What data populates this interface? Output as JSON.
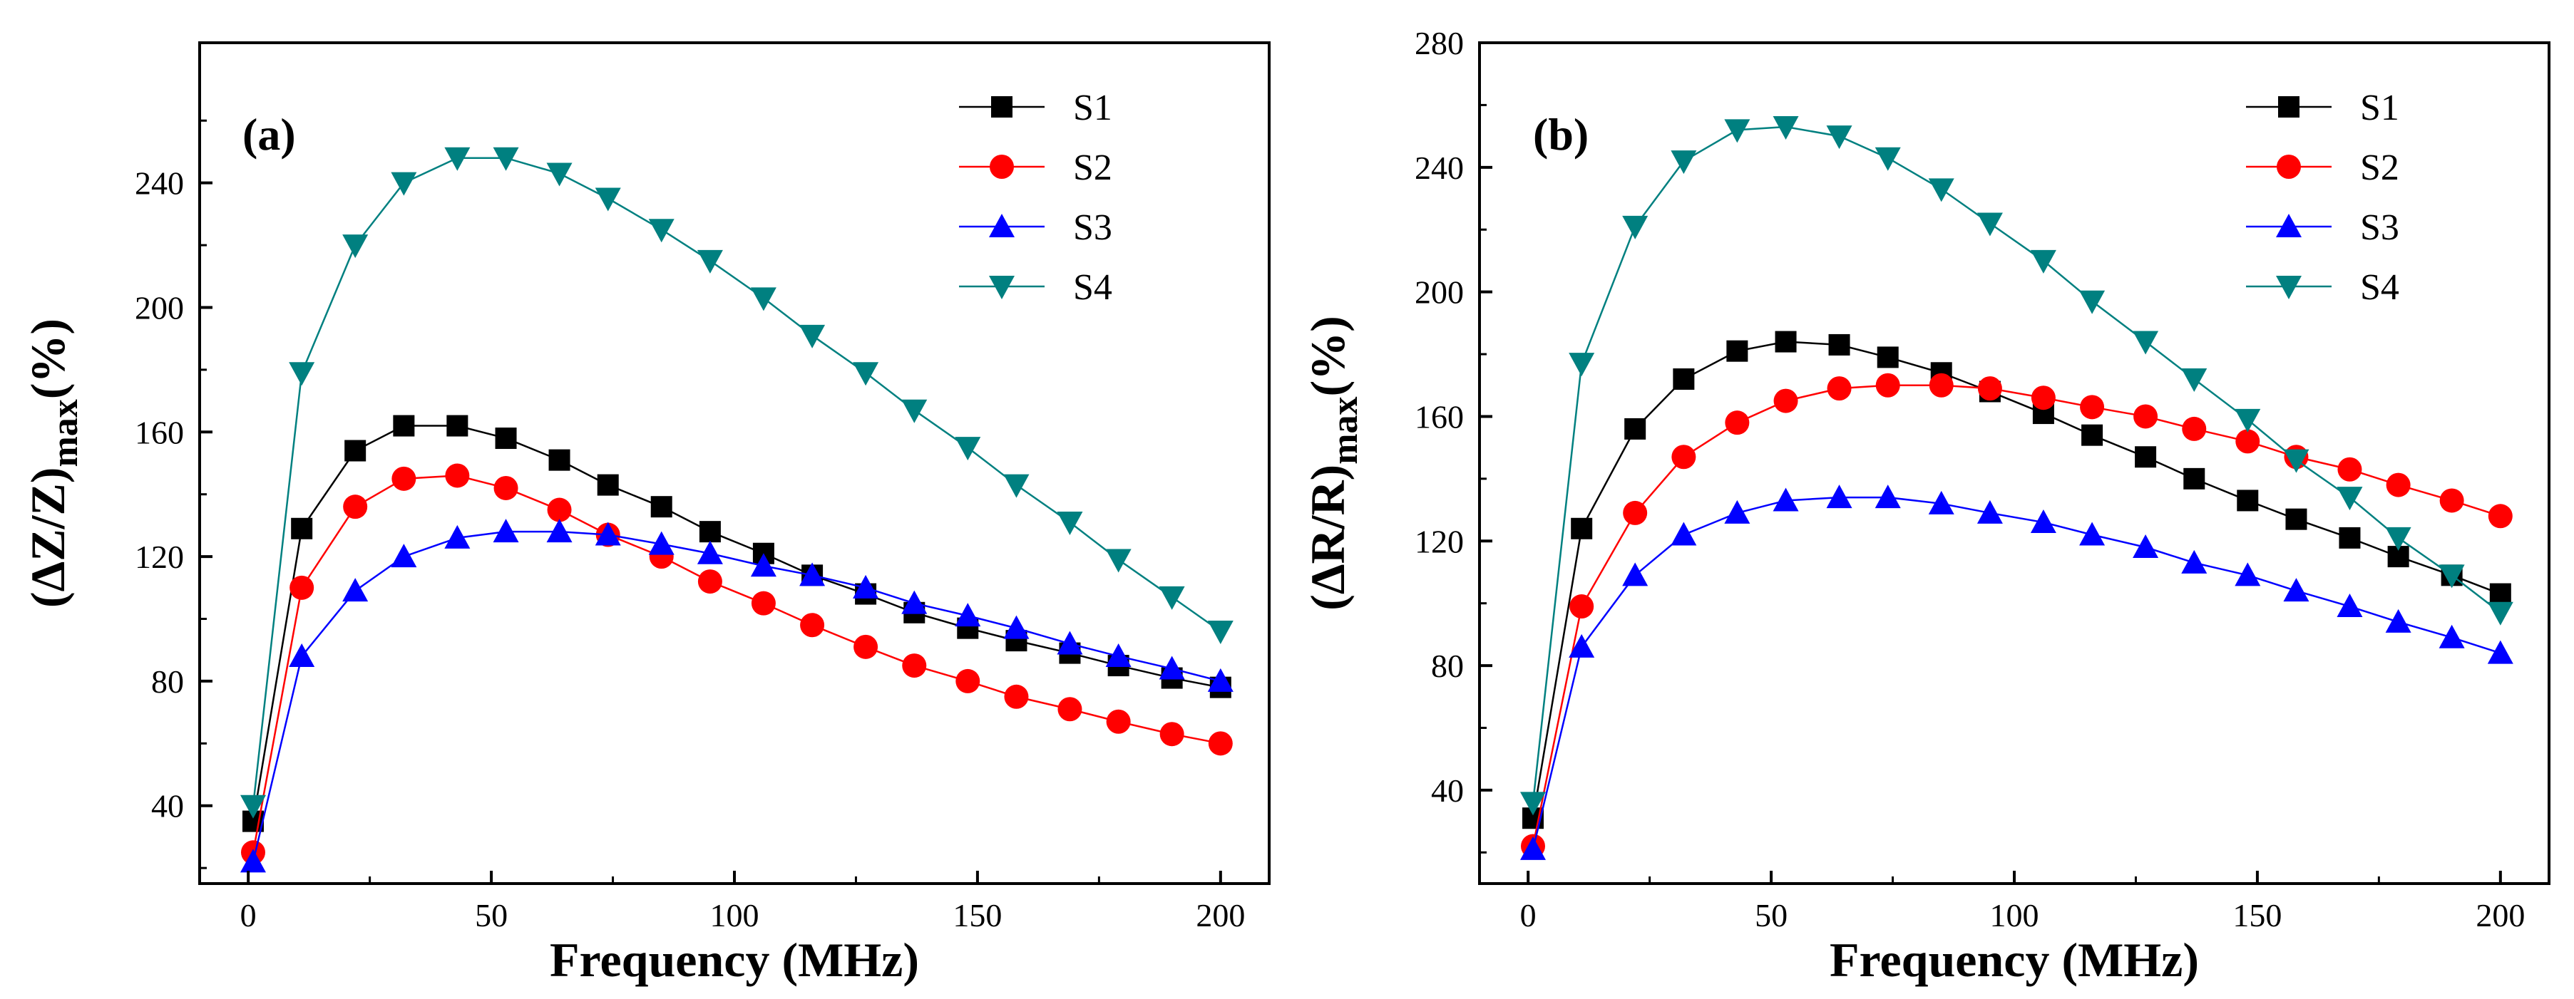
{
  "chart_data": [
    {
      "type": "line",
      "panel_label": "(a)",
      "xlabel": "Frequency (MHz)",
      "ylabel_main": "(ΔZ/Z)",
      "ylabel_sub": "max",
      "ylabel_suffix": "(%)",
      "xlim": [
        -10,
        210
      ],
      "ylim": [
        15,
        285
      ],
      "xticks": [
        0,
        50,
        100,
        150,
        200
      ],
      "yticks": [
        40,
        80,
        120,
        160,
        200,
        240
      ],
      "grid": false,
      "legend_position": "top-right",
      "x": [
        1,
        11,
        22,
        32,
        43,
        53,
        64,
        74,
        85,
        95,
        106,
        116,
        127,
        137,
        148,
        158,
        169,
        179,
        190,
        200
      ],
      "series": [
        {
          "name": "S1",
          "color": "#000000",
          "marker": "square",
          "values": [
            35,
            129,
            154,
            162,
            162,
            158,
            151,
            143,
            136,
            128,
            121,
            114,
            108,
            102,
            97,
            93,
            89,
            85,
            81,
            78
          ]
        },
        {
          "name": "S2",
          "color": "#ff0000",
          "marker": "circle",
          "values": [
            25,
            110,
            136,
            145,
            146,
            142,
            135,
            127,
            120,
            112,
            105,
            98,
            91,
            85,
            80,
            75,
            71,
            67,
            63,
            60
          ]
        },
        {
          "name": "S3",
          "color": "#0000ff",
          "marker": "triangle-up",
          "values": [
            22,
            88,
            109,
            120,
            126,
            128,
            128,
            127,
            124,
            121,
            117,
            114,
            110,
            105,
            101,
            97,
            92,
            88,
            84,
            80
          ]
        },
        {
          "name": "S4",
          "color": "#008080",
          "marker": "triangle-down",
          "values": [
            40,
            179,
            220,
            240,
            248,
            248,
            243,
            235,
            225,
            215,
            203,
            191,
            179,
            167,
            155,
            143,
            131,
            119,
            107,
            96
          ]
        }
      ]
    },
    {
      "type": "line",
      "panel_label": "(b)",
      "xlabel": "Frequency (MHz)",
      "ylabel_main": "(ΔR/R)",
      "ylabel_sub": "max",
      "ylabel_suffix": "(%)",
      "xlim": [
        -10,
        210
      ],
      "ylim": [
        10,
        280
      ],
      "xticks": [
        0,
        50,
        100,
        150,
        200
      ],
      "yticks": [
        40,
        80,
        120,
        160,
        200,
        240,
        280
      ],
      "grid": false,
      "legend_position": "top-right",
      "x": [
        1,
        11,
        22,
        32,
        43,
        53,
        64,
        74,
        85,
        95,
        106,
        116,
        127,
        137,
        148,
        158,
        169,
        179,
        190,
        200
      ],
      "series": [
        {
          "name": "S1",
          "color": "#000000",
          "marker": "square",
          "values": [
            31,
            124,
            156,
            172,
            181,
            184,
            183,
            179,
            174,
            168,
            161,
            154,
            147,
            140,
            133,
            127,
            121,
            115,
            109,
            103
          ]
        },
        {
          "name": "S2",
          "color": "#ff0000",
          "marker": "circle",
          "values": [
            22,
            99,
            129,
            147,
            158,
            165,
            169,
            170,
            170,
            169,
            166,
            163,
            160,
            156,
            152,
            147,
            143,
            138,
            133,
            128
          ]
        },
        {
          "name": "S3",
          "color": "#0000ff",
          "marker": "triangle-up",
          "values": [
            21,
            86,
            109,
            122,
            129,
            133,
            134,
            134,
            132,
            129,
            126,
            122,
            118,
            113,
            109,
            104,
            99,
            94,
            89,
            84
          ]
        },
        {
          "name": "S4",
          "color": "#008080",
          "marker": "triangle-down",
          "values": [
            36,
            177,
            221,
            242,
            252,
            253,
            250,
            243,
            233,
            222,
            210,
            197,
            184,
            172,
            159,
            146,
            134,
            121,
            109,
            97
          ]
        }
      ]
    }
  ]
}
